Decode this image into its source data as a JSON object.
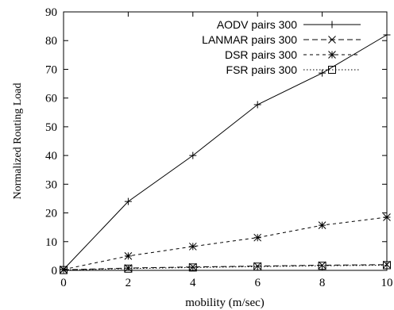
{
  "chart_data": {
    "type": "line",
    "title": "",
    "xlabel": "mobility (m/sec)",
    "ylabel": "Normalized Routing Load",
    "xlim": [
      0,
      10
    ],
    "ylim": [
      0,
      90
    ],
    "xticks": [
      0,
      2,
      4,
      6,
      8,
      10
    ],
    "yticks": [
      0,
      10,
      20,
      30,
      40,
      50,
      60,
      70,
      80,
      90
    ],
    "grid": false,
    "legend_position": "top-right",
    "x": [
      0,
      2,
      4,
      6,
      8,
      10
    ],
    "series": [
      {
        "name": "AODV pairs 300",
        "values": [
          0.3,
          24,
          40,
          57.7,
          68.7,
          82
        ],
        "marker": "plus",
        "line": "solid"
      },
      {
        "name": "LANMAR pairs 300",
        "values": [
          0.2,
          0.8,
          1.2,
          1.5,
          1.8,
          2.0
        ],
        "marker": "cross",
        "line": "long-dash"
      },
      {
        "name": "DSR pairs 300",
        "values": [
          0.3,
          5,
          8.3,
          11.4,
          15.7,
          18.5
        ],
        "marker": "asterisk",
        "line": "short-dash"
      },
      {
        "name": "FSR pairs 300",
        "values": [
          0.1,
          0.6,
          1.0,
          1.3,
          1.6,
          1.8
        ],
        "marker": "square",
        "line": "dotted"
      }
    ]
  }
}
